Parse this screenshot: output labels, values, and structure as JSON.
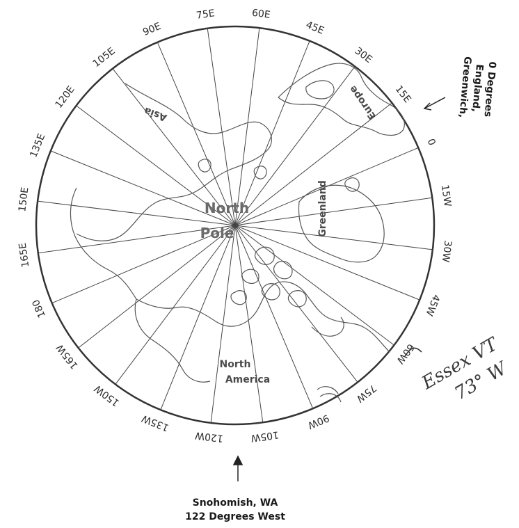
{
  "pole_label": [
    "North",
    "Pole"
  ],
  "continents": {
    "asia": "Asia",
    "europe": "Europe",
    "greenland": "Greenland",
    "north_america": [
      "North",
      "America"
    ]
  },
  "meridians": [
    "0",
    "15W",
    "30W",
    "45W",
    "60W",
    "75W",
    "90W",
    "105W",
    "120W",
    "135W",
    "150W",
    "165W",
    "180",
    "165E",
    "150E",
    "135E",
    "120E",
    "105E",
    "90E",
    "75E",
    "60E",
    "45E",
    "30E",
    "15E"
  ],
  "greenwich_note": [
    "0 Degrees",
    "England,",
    "Greenwich,"
  ],
  "snohomish_note": [
    "Snohomish, WA",
    "122 Degrees West"
  ],
  "handwritten_note": [
    "Essex VT",
    "73° W"
  ]
}
